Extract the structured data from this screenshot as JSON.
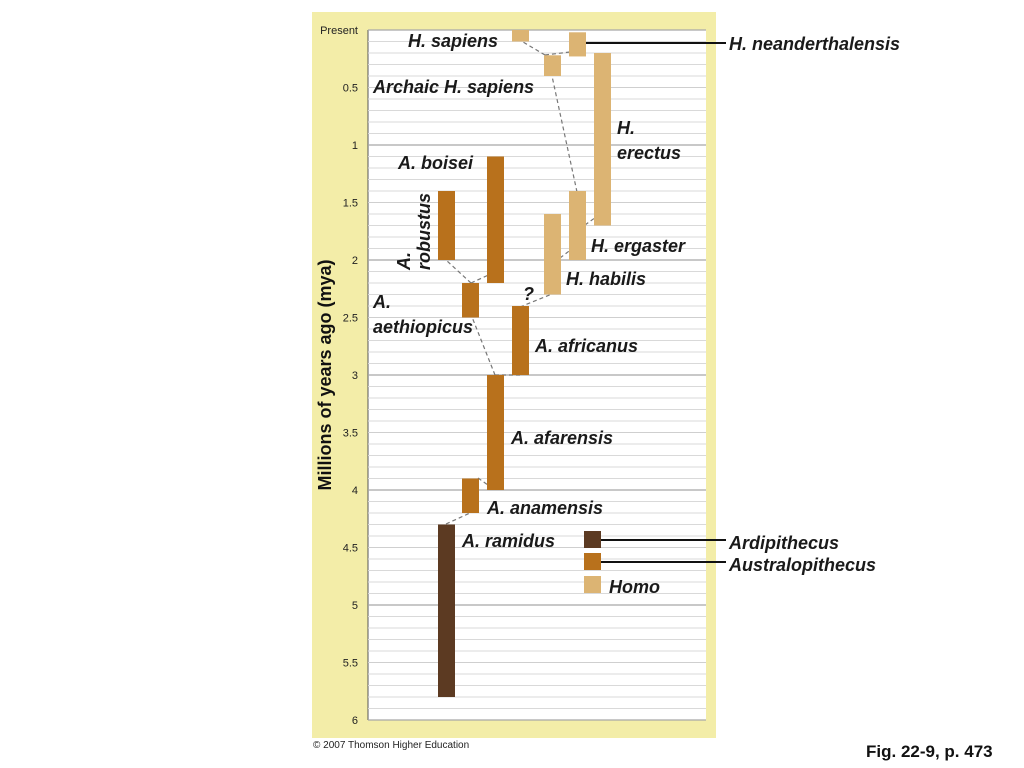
{
  "axis": {
    "title": "Millions of years ago (mya)",
    "ticks": [
      {
        "value": 0,
        "label": "Present"
      },
      {
        "value": 0.5,
        "label": "0.5"
      },
      {
        "value": 1,
        "label": "1"
      },
      {
        "value": 1.5,
        "label": "1.5"
      },
      {
        "value": 2,
        "label": "2"
      },
      {
        "value": 2.5,
        "label": "2.5"
      },
      {
        "value": 3,
        "label": "3"
      },
      {
        "value": 3.5,
        "label": "3.5"
      },
      {
        "value": 4,
        "label": "4"
      },
      {
        "value": 4.5,
        "label": "4.5"
      },
      {
        "value": 5,
        "label": "5"
      },
      {
        "value": 5.5,
        "label": "5.5"
      },
      {
        "value": 6,
        "label": "6"
      }
    ]
  },
  "colors": {
    "background_panel": "#f3eda8",
    "chart_area": "#ffffff",
    "Ardipithecus": "#5c3a22",
    "Australopithecus": "#b8711c",
    "Homo": "#dcb473"
  },
  "species": [
    {
      "id": "h-sapiens",
      "genus": "Homo",
      "start_mya": 0.1,
      "end_mya": 0
    },
    {
      "id": "h-neanderthalensis",
      "genus": "Homo",
      "start_mya": 0.23,
      "end_mya": 0.02
    },
    {
      "id": "archaic-h-sapiens",
      "genus": "Homo",
      "start_mya": 0.4,
      "end_mya": 0.22
    },
    {
      "id": "h-erectus",
      "genus": "Homo",
      "start_mya": 1.7,
      "end_mya": 0.2
    },
    {
      "id": "h-ergaster",
      "genus": "Homo",
      "start_mya": 2.0,
      "end_mya": 1.4
    },
    {
      "id": "h-habilis",
      "genus": "Homo",
      "start_mya": 2.3,
      "end_mya": 1.6
    },
    {
      "id": "a-boisei",
      "genus": "Australopithecus",
      "start_mya": 2.2,
      "end_mya": 1.1
    },
    {
      "id": "a-robustus",
      "genus": "Australopithecus",
      "start_mya": 2.0,
      "end_mya": 1.4
    },
    {
      "id": "a-aethiopicus",
      "genus": "Australopithecus",
      "start_mya": 2.5,
      "end_mya": 2.2
    },
    {
      "id": "a-africanus",
      "genus": "Australopithecus",
      "start_mya": 3.0,
      "end_mya": 2.4
    },
    {
      "id": "a-afarensis",
      "genus": "Australopithecus",
      "start_mya": 4.0,
      "end_mya": 3.0
    },
    {
      "id": "a-anamensis",
      "genus": "Australopithecus",
      "start_mya": 4.2,
      "end_mya": 3.9
    },
    {
      "id": "a-ramidus",
      "genus": "Ardipithecus",
      "start_mya": 5.8,
      "end_mya": 4.3
    }
  ],
  "labels": {
    "h_sapiens": "H. sapiens",
    "h_neanderthalensis": "H. neanderthalensis",
    "archaic_h_sapiens": "Archaic H. sapiens",
    "h_erectus_line1": "H.",
    "h_erectus_line2": "erectus",
    "h_ergaster": "H. ergaster",
    "h_habilis": "H. habilis",
    "a_boisei": "A. boisei",
    "a_robustus_line1": "A.",
    "a_robustus_line2": "robustus",
    "a_aethiopicus_line1": "A.",
    "a_aethiopicus_line2": "aethiopicus",
    "a_africanus": "A. africanus",
    "a_afarensis": "A. afarensis",
    "a_anamensis": "A. anamensis",
    "a_ramidus": "A. ramidus",
    "question_mark": "?"
  },
  "legend": [
    {
      "genus": "Ardipithecus",
      "label": "Ardipithecus"
    },
    {
      "genus": "Australopithecus",
      "label": "Australopithecus"
    },
    {
      "genus": "Homo",
      "label": "Homo"
    }
  ],
  "footer": {
    "copyright": "© 2007 Thomson Higher Education",
    "figure_ref": "Fig. 22-9, p. 473"
  }
}
